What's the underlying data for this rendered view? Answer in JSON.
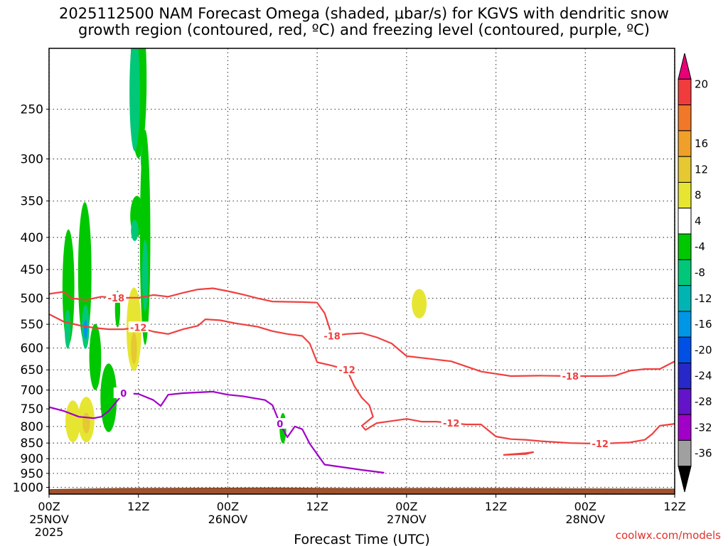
{
  "title_line1": "2025112500 NAM Forecast Omega (shaded, μbar/s) for KGVS with dendritic snow",
  "title_line2": "growth region (contoured, red, ºC) and freezing level (contoured, purple, ºC)",
  "credit": "coolwx.com/models",
  "chart_data": {
    "type": "heatmap",
    "xlabel": "Forecast Time (UTC)",
    "x_range_hours": [
      0,
      84
    ],
    "x_ticks": [
      {
        "hour": 0,
        "time": "00Z",
        "date": "25NOV",
        "year": "2025"
      },
      {
        "hour": 12,
        "time": "12Z",
        "date": "",
        "year": ""
      },
      {
        "hour": 24,
        "time": "00Z",
        "date": "26NOV",
        "year": ""
      },
      {
        "hour": 36,
        "time": "12Z",
        "date": "",
        "year": ""
      },
      {
        "hour": 48,
        "time": "00Z",
        "date": "27NOV",
        "year": ""
      },
      {
        "hour": 60,
        "time": "12Z",
        "date": "",
        "year": ""
      },
      {
        "hour": 72,
        "time": "00Z",
        "date": "28NOV",
        "year": ""
      },
      {
        "hour": 84,
        "time": "12Z",
        "date": "",
        "year": ""
      }
    ],
    "y_axis": "pressure (hPa), reversed log scale",
    "y_range": [
      200,
      1025
    ],
    "y_ticks": [
      250,
      300,
      350,
      400,
      450,
      500,
      550,
      600,
      650,
      700,
      750,
      800,
      850,
      900,
      950,
      1000
    ],
    "grid": true,
    "colorbar": {
      "labels": [
        20,
        16,
        12,
        8,
        4,
        -4,
        -8,
        -12,
        -16,
        -20,
        -24,
        -28,
        -32,
        -36
      ],
      "colors": [
        "#e80078",
        "#f03c3c",
        "#f07828",
        "#f0a028",
        "#e6c832",
        "#e6e632",
        "#ffffff",
        "#00c800",
        "#00c878",
        "#00b4b4",
        "#0096e6",
        "#0050e6",
        "#2828c8",
        "#6414c8",
        "#a000c8",
        "#a0a0a0",
        "#000000"
      ]
    },
    "series": [
      {
        "name": "-18",
        "color": "#f04040",
        "kind": "contour",
        "points": [
          [
            0,
            492
          ],
          [
            2,
            488
          ],
          [
            3,
            500
          ],
          [
            5,
            503
          ],
          [
            7,
            497
          ],
          [
            9,
            499
          ],
          [
            12,
            499
          ],
          [
            14,
            494
          ],
          [
            16,
            497
          ],
          [
            18,
            490
          ],
          [
            20,
            484
          ],
          [
            22,
            482
          ],
          [
            24,
            487
          ],
          [
            26,
            493
          ],
          [
            28,
            500
          ],
          [
            30,
            506
          ],
          [
            34,
            507
          ],
          [
            36,
            508
          ],
          [
            37,
            528
          ],
          [
            38,
            574
          ],
          [
            40,
            570
          ],
          [
            42,
            568
          ],
          [
            44,
            577
          ],
          [
            46,
            590
          ],
          [
            48,
            618
          ],
          [
            50,
            622
          ],
          [
            54,
            630
          ],
          [
            58,
            654
          ],
          [
            62,
            665
          ],
          [
            66,
            664
          ],
          [
            70,
            665
          ],
          [
            74,
            665
          ],
          [
            76,
            664
          ],
          [
            78,
            652
          ],
          [
            80,
            648
          ],
          [
            82,
            648
          ],
          [
            84,
            630
          ]
        ]
      },
      {
        "name": "-12",
        "color": "#f04040",
        "kind": "contour",
        "points": [
          [
            0,
            530
          ],
          [
            2,
            545
          ],
          [
            4,
            552
          ],
          [
            6,
            557
          ],
          [
            8,
            560
          ],
          [
            10,
            560
          ],
          [
            12,
            556
          ],
          [
            14,
            565
          ],
          [
            16,
            570
          ],
          [
            18,
            560
          ],
          [
            20,
            553
          ],
          [
            21,
            540
          ],
          [
            23,
            542
          ],
          [
            25,
            548
          ],
          [
            28,
            555
          ],
          [
            30,
            564
          ],
          [
            32,
            570
          ],
          [
            34,
            574
          ],
          [
            35,
            590
          ],
          [
            36,
            632
          ],
          [
            38,
            640
          ],
          [
            40,
            650
          ],
          [
            41,
            690
          ],
          [
            42,
            720
          ],
          [
            43,
            740
          ],
          [
            43.5,
            772
          ],
          [
            42,
            798
          ],
          [
            42.5,
            810
          ],
          [
            44,
            790
          ],
          [
            46,
            784
          ],
          [
            48,
            778
          ],
          [
            50,
            786
          ],
          [
            52,
            786
          ],
          [
            54,
            790
          ],
          [
            56,
            794
          ],
          [
            58,
            794
          ],
          [
            60,
            830
          ],
          [
            62,
            838
          ],
          [
            64,
            840
          ],
          [
            66,
            844
          ],
          [
            70,
            850
          ],
          [
            74,
            852
          ],
          [
            78,
            848
          ],
          [
            80,
            840
          ],
          [
            81,
            822
          ],
          [
            82,
            798
          ],
          [
            84,
            792
          ]
        ]
      },
      {
        "name": "-12",
        "color": "#f04040",
        "kind": "contour",
        "points": [
          [
            61,
            888
          ],
          [
            64,
            882
          ],
          [
            65,
            879
          ],
          [
            64,
            885
          ],
          [
            61,
            888
          ]
        ]
      },
      {
        "name": "0",
        "color": "#a000c8",
        "kind": "contour",
        "points": [
          [
            0,
            745
          ],
          [
            2,
            756
          ],
          [
            4,
            772
          ],
          [
            6,
            776
          ],
          [
            7,
            772
          ],
          [
            8,
            756
          ],
          [
            10,
            708
          ],
          [
            12,
            710
          ],
          [
            14,
            726
          ],
          [
            15,
            742
          ],
          [
            16,
            712
          ],
          [
            18,
            708
          ],
          [
            22,
            704
          ],
          [
            24,
            712
          ],
          [
            26,
            716
          ],
          [
            29,
            726
          ],
          [
            30,
            740
          ],
          [
            31,
            792
          ],
          [
            32,
            832
          ],
          [
            33,
            800
          ],
          [
            34,
            808
          ],
          [
            35,
            852
          ],
          [
            37,
            920
          ],
          [
            42,
            938
          ],
          [
            45,
            948
          ]
        ]
      }
    ],
    "shaded_values": [
      -8,
      -12,
      4,
      8
    ]
  }
}
